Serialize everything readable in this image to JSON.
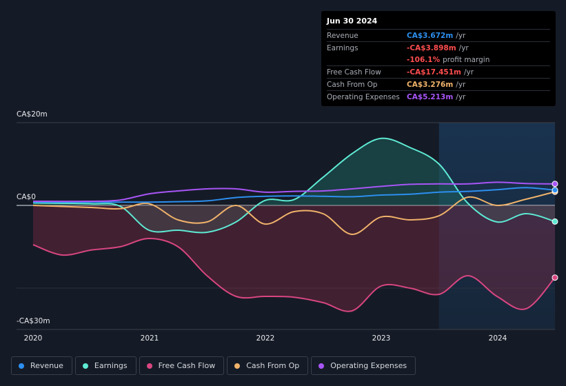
{
  "tooltip": {
    "date": "Jun 30 2024",
    "rows": [
      {
        "label": "Revenue",
        "value": "CA$3.672m",
        "unit": "/yr",
        "color": "#2d8ff0"
      },
      {
        "label": "Earnings",
        "value": "-CA$3.898m",
        "unit": "/yr",
        "color": "#ff4d4f"
      },
      {
        "label": "",
        "value": "-106.1%",
        "unit": "profit margin",
        "color": "#ff4d4f"
      },
      {
        "label": "Free Cash Flow",
        "value": "-CA$17.451m",
        "unit": "/yr",
        "color": "#ff4d4f"
      },
      {
        "label": "Cash From Op",
        "value": "CA$3.276m",
        "unit": "/yr",
        "color": "#f0b36b"
      },
      {
        "label": "Operating Expenses",
        "value": "CA$5.213m",
        "unit": "/yr",
        "color": "#a855f7"
      }
    ]
  },
  "legend": [
    {
      "name": "Revenue",
      "color": "#2d8ff0"
    },
    {
      "name": "Earnings",
      "color": "#5eead4"
    },
    {
      "name": "Free Cash Flow",
      "color": "#d94681"
    },
    {
      "name": "Cash From Op",
      "color": "#f0b36b"
    },
    {
      "name": "Operating Expenses",
      "color": "#a855f7"
    }
  ],
  "chart_data": {
    "type": "line",
    "title": "",
    "xlabel": "",
    "ylabel": "",
    "ylim": [
      -30,
      20
    ],
    "xlim": [
      2020.0,
      2024.5
    ],
    "y_tick_labels": [
      {
        "value": 20,
        "label": "CA$20m"
      },
      {
        "value": 0,
        "label": "CA$0"
      },
      {
        "value": -30,
        "label": "-CA$30m"
      }
    ],
    "x_tick_labels": [
      {
        "value": 2020,
        "label": "2020"
      },
      {
        "value": 2021,
        "label": "2021"
      },
      {
        "value": 2022,
        "label": "2022"
      },
      {
        "value": 2023,
        "label": "2023"
      },
      {
        "value": 2024,
        "label": "2024"
      }
    ],
    "highlight_start": 2023.5,
    "series": [
      {
        "name": "Revenue",
        "color": "#2d8ff0",
        "x": [
          2020.0,
          2020.5,
          2020.75,
          2021.0,
          2021.25,
          2021.5,
          2021.75,
          2022.0,
          2022.25,
          2022.5,
          2022.75,
          2023.0,
          2023.25,
          2023.5,
          2023.75,
          2024.0,
          2024.25,
          2024.5
        ],
        "values": [
          0.8,
          0.8,
          0.8,
          0.8,
          0.9,
          1.1,
          1.9,
          2.2,
          2.3,
          2.2,
          2.1,
          2.5,
          2.7,
          3.2,
          3.4,
          3.8,
          4.3,
          3.7
        ]
      },
      {
        "name": "Earnings",
        "color": "#5eead4",
        "x": [
          2020.0,
          2020.5,
          2020.75,
          2021.0,
          2021.25,
          2021.5,
          2021.75,
          2022.0,
          2022.25,
          2022.5,
          2022.75,
          2023.0,
          2023.25,
          2023.5,
          2023.75,
          2024.0,
          2024.25,
          2024.5
        ],
        "values": [
          0.6,
          0.4,
          -0.2,
          -6.0,
          -6.0,
          -6.5,
          -4.0,
          1.2,
          1.4,
          6.8,
          12.5,
          16.2,
          14.0,
          10.0,
          0.5,
          -4.0,
          -2.0,
          -3.9
        ]
      },
      {
        "name": "Free Cash Flow",
        "color": "#d94681",
        "x": [
          2020.0,
          2020.25,
          2020.5,
          2020.75,
          2021.0,
          2021.25,
          2021.5,
          2021.75,
          2022.0,
          2022.25,
          2022.5,
          2022.75,
          2023.0,
          2023.25,
          2023.5,
          2023.75,
          2024.0,
          2024.25,
          2024.5
        ],
        "values": [
          -9.5,
          -12.0,
          -10.8,
          -10.0,
          -8.0,
          -10.0,
          -17.0,
          -22.0,
          -22.0,
          -22.2,
          -23.5,
          -25.5,
          -19.5,
          -20.0,
          -21.5,
          -17.0,
          -22.0,
          -25.0,
          -17.45
        ]
      },
      {
        "name": "Cash From Op",
        "color": "#f0b36b",
        "x": [
          2020.0,
          2020.5,
          2020.75,
          2021.0,
          2021.25,
          2021.5,
          2021.75,
          2022.0,
          2022.25,
          2022.5,
          2022.75,
          2023.0,
          2023.25,
          2023.5,
          2023.75,
          2024.0,
          2024.25,
          2024.5
        ],
        "values": [
          0.0,
          -0.5,
          -0.8,
          0.4,
          -3.5,
          -4.0,
          0.0,
          -4.5,
          -1.5,
          -2.0,
          -7.0,
          -2.8,
          -3.5,
          -2.5,
          2.0,
          0.0,
          1.5,
          3.3
        ]
      },
      {
        "name": "Operating Expenses",
        "color": "#a855f7",
        "x": [
          2020.0,
          2020.5,
          2020.75,
          2021.0,
          2021.25,
          2021.5,
          2021.75,
          2022.0,
          2022.25,
          2022.5,
          2022.75,
          2023.0,
          2023.25,
          2023.5,
          2023.75,
          2024.0,
          2024.25,
          2024.5
        ],
        "values": [
          1.0,
          1.0,
          1.3,
          2.8,
          3.5,
          4.0,
          4.0,
          3.2,
          3.4,
          3.5,
          4.0,
          4.6,
          5.1,
          5.2,
          5.2,
          5.6,
          5.3,
          5.2
        ]
      }
    ]
  }
}
